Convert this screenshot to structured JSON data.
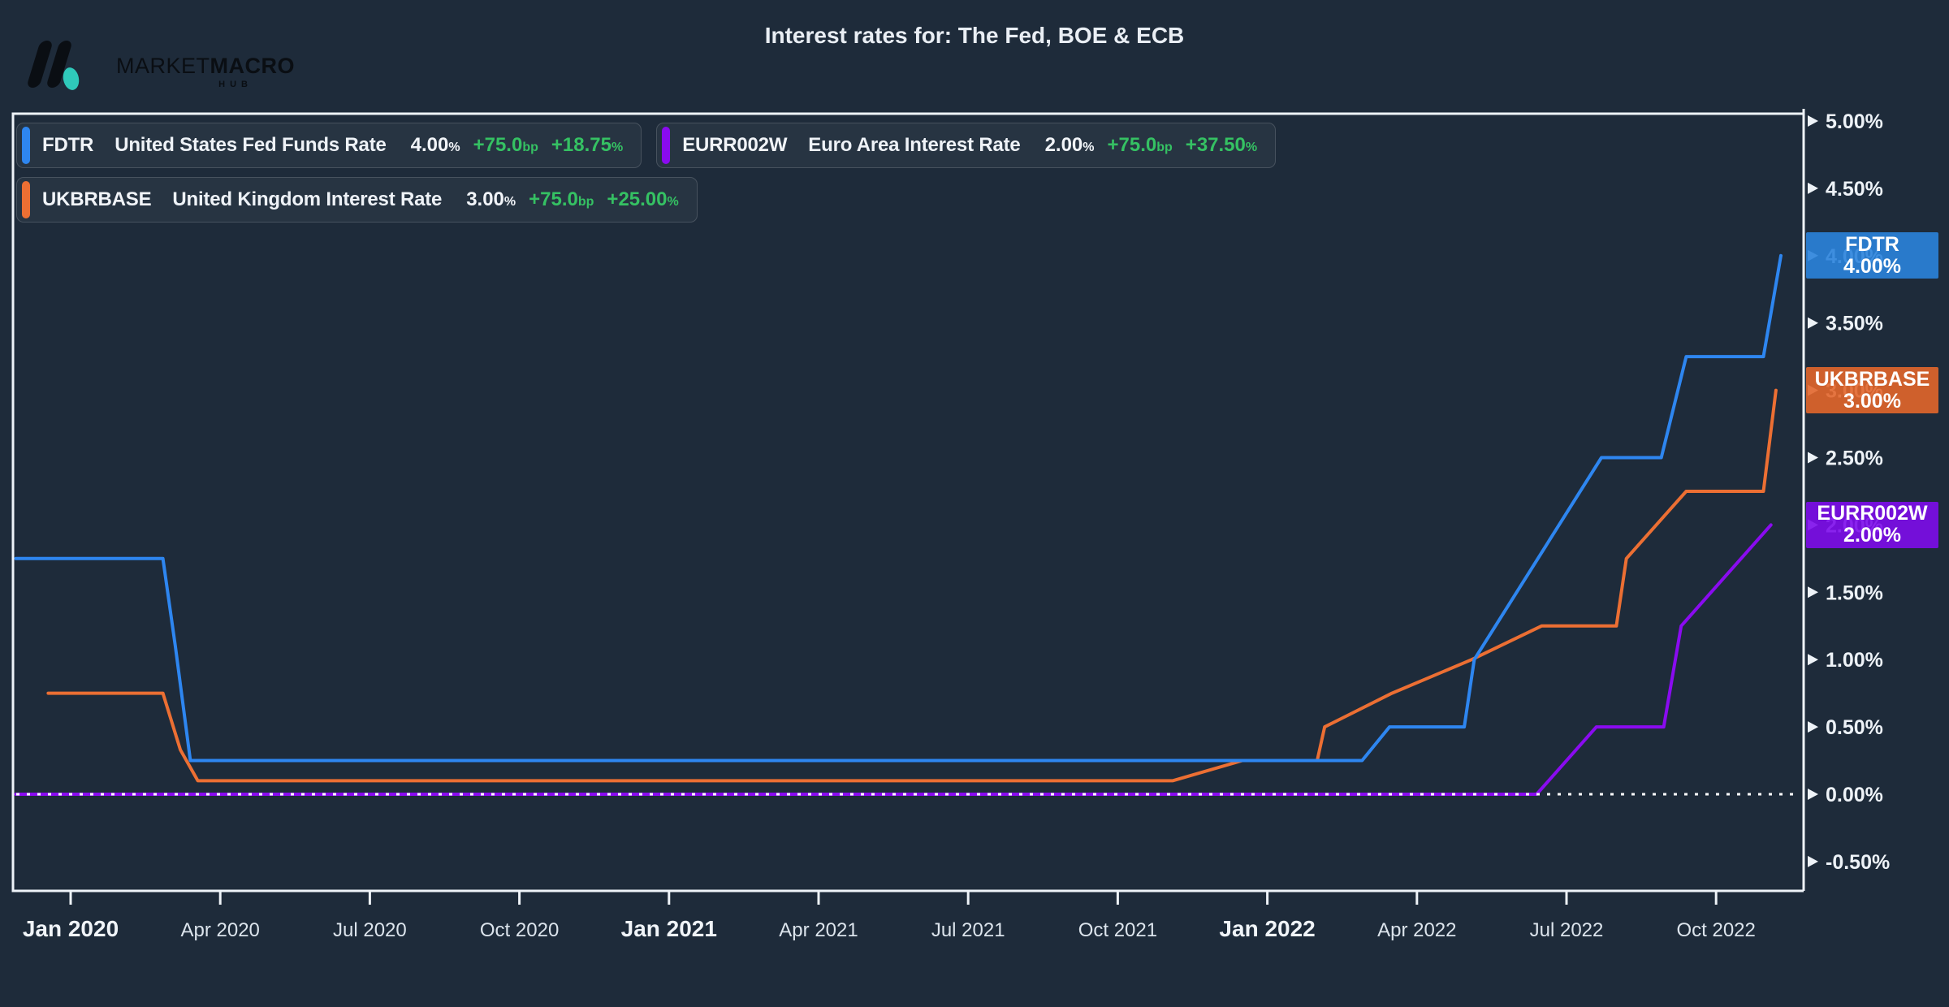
{
  "header": {
    "logo": {
      "brand_primary": "MARKET",
      "brand_secondary": "MACRO",
      "brand_sub": "HUB"
    },
    "title": "Interest rates for: The Fed, BOE & ECB"
  },
  "colors": {
    "background": "#1e2b3a",
    "axis": "#eef3f8",
    "positive_green": "#35c163",
    "fdtr_line": "#2e86f0",
    "ukbrbase_line": "#ec6f33",
    "eurr002w_line": "#8a0bf0",
    "fdtr_badge": "#2a83dc",
    "ukbrbase_badge": "#e2662b",
    "eurr002w_badge": "#7d0ceb"
  },
  "legend": [
    {
      "ticker": "FDTR",
      "name": "United States Fed Funds Rate",
      "value": "4.00",
      "value_unit": "%",
      "change_bp": "+75.0",
      "bp_unit": "bp",
      "change_pct": "+18.75",
      "pct_unit": "%",
      "accent": "#2e86f0"
    },
    {
      "ticker": "EURR002W",
      "name": "Euro Area Interest Rate",
      "value": "2.00",
      "value_unit": "%",
      "change_bp": "+75.0",
      "bp_unit": "bp",
      "change_pct": "+37.50",
      "pct_unit": "%",
      "accent": "#8a0bf0"
    },
    {
      "ticker": "UKBRBASE",
      "name": "United Kingdom Interest Rate",
      "value": "3.00",
      "value_unit": "%",
      "change_bp": "+75.0",
      "bp_unit": "bp",
      "change_pct": "+25.00",
      "pct_unit": "%",
      "accent": "#ec6f33"
    }
  ],
  "price_badges": [
    {
      "ticker": "FDTR",
      "value": "4.00%",
      "level": 4.0,
      "color": "#2a83dc"
    },
    {
      "ticker": "UKBRBASE",
      "value": "3.00%",
      "level": 3.0,
      "color": "#e2662b"
    },
    {
      "ticker": "EURR002W",
      "value": "2.00%",
      "level": 2.0,
      "color": "#7d0ceb"
    }
  ],
  "chart_data": {
    "type": "line",
    "title": "Interest rates for: The Fed, BOE & ECB",
    "x_axis": {
      "unit": "months since Jan 2020",
      "range_months": [
        -1.1,
        34.7
      ],
      "ticks": [
        {
          "month": 0,
          "label": "Jan 2020",
          "bold": true
        },
        {
          "month": 3,
          "label": "Apr 2020",
          "bold": false
        },
        {
          "month": 6,
          "label": "Jul 2020",
          "bold": false
        },
        {
          "month": 9,
          "label": "Oct 2020",
          "bold": false
        },
        {
          "month": 12,
          "label": "Jan 2021",
          "bold": true
        },
        {
          "month": 15,
          "label": "Apr 2021",
          "bold": false
        },
        {
          "month": 18,
          "label": "Jul 2021",
          "bold": false
        },
        {
          "month": 21,
          "label": "Oct 2021",
          "bold": false
        },
        {
          "month": 24,
          "label": "Jan 2022",
          "bold": true
        },
        {
          "month": 27,
          "label": "Apr 2022",
          "bold": false
        },
        {
          "month": 30,
          "label": "Jul 2022",
          "bold": false
        },
        {
          "month": 33,
          "label": "Oct 2022",
          "bold": false
        }
      ]
    },
    "y_axis": {
      "unit": "%",
      "min": -0.5,
      "max": 5.0,
      "tick_step": 0.5,
      "ticks": [
        {
          "value": 5.0,
          "label": "5.00%"
        },
        {
          "value": 4.5,
          "label": "4.50%"
        },
        {
          "value": 4.0,
          "label": "4.00%"
        },
        {
          "value": 3.5,
          "label": "3.50%"
        },
        {
          "value": 3.0,
          "label": "3.00%"
        },
        {
          "value": 2.5,
          "label": "2.50%"
        },
        {
          "value": 2.0,
          "label": "2.00%"
        },
        {
          "value": 1.5,
          "label": "1.50%"
        },
        {
          "value": 1.0,
          "label": "1.00%"
        },
        {
          "value": 0.5,
          "label": "0.50%"
        },
        {
          "value": 0.0,
          "label": "0.00%"
        },
        {
          "value": -0.5,
          "label": "-0.50%"
        }
      ]
    },
    "zero_line": {
      "value": 0.0,
      "style": "dotted",
      "color": "#ffffff"
    },
    "grid": false,
    "legend_position": "top-left",
    "series": [
      {
        "name": "UKBRBASE",
        "label": "United Kingdom Interest Rate",
        "color": "#ec6f33",
        "last_value": 3.0,
        "points": [
          [
            -0.45,
            0.75
          ],
          [
            1.85,
            0.75
          ],
          [
            2.2,
            0.33
          ],
          [
            2.55,
            0.1
          ],
          [
            22.1,
            0.1
          ],
          [
            23.5,
            0.25
          ],
          [
            25.0,
            0.25
          ],
          [
            25.15,
            0.5
          ],
          [
            26.5,
            0.75
          ],
          [
            28.1,
            1.0
          ],
          [
            29.5,
            1.25
          ],
          [
            31.0,
            1.25
          ],
          [
            31.2,
            1.75
          ],
          [
            32.4,
            2.25
          ],
          [
            33.95,
            2.25
          ],
          [
            34.2,
            3.0
          ]
        ]
      },
      {
        "name": "FDTR",
        "label": "United States Fed Funds Rate",
        "color": "#2e86f0",
        "last_value": 4.0,
        "points": [
          [
            -1.1,
            1.75
          ],
          [
            1.85,
            1.75
          ],
          [
            2.1,
            1.1
          ],
          [
            2.4,
            0.25
          ],
          [
            25.9,
            0.25
          ],
          [
            26.45,
            0.5
          ],
          [
            27.95,
            0.5
          ],
          [
            28.15,
            1.0
          ],
          [
            30.7,
            2.5
          ],
          [
            31.9,
            2.5
          ],
          [
            32.4,
            3.25
          ],
          [
            33.95,
            3.25
          ],
          [
            34.3,
            4.0
          ]
        ]
      },
      {
        "name": "EURR002W",
        "label": "Euro Area Interest Rate",
        "color": "#8a0bf0",
        "last_value": 2.0,
        "points": [
          [
            -1.1,
            0.0
          ],
          [
            29.4,
            0.0
          ],
          [
            30.6,
            0.5
          ],
          [
            31.95,
            0.5
          ],
          [
            32.3,
            1.25
          ],
          [
            34.1,
            2.0
          ]
        ]
      }
    ]
  }
}
